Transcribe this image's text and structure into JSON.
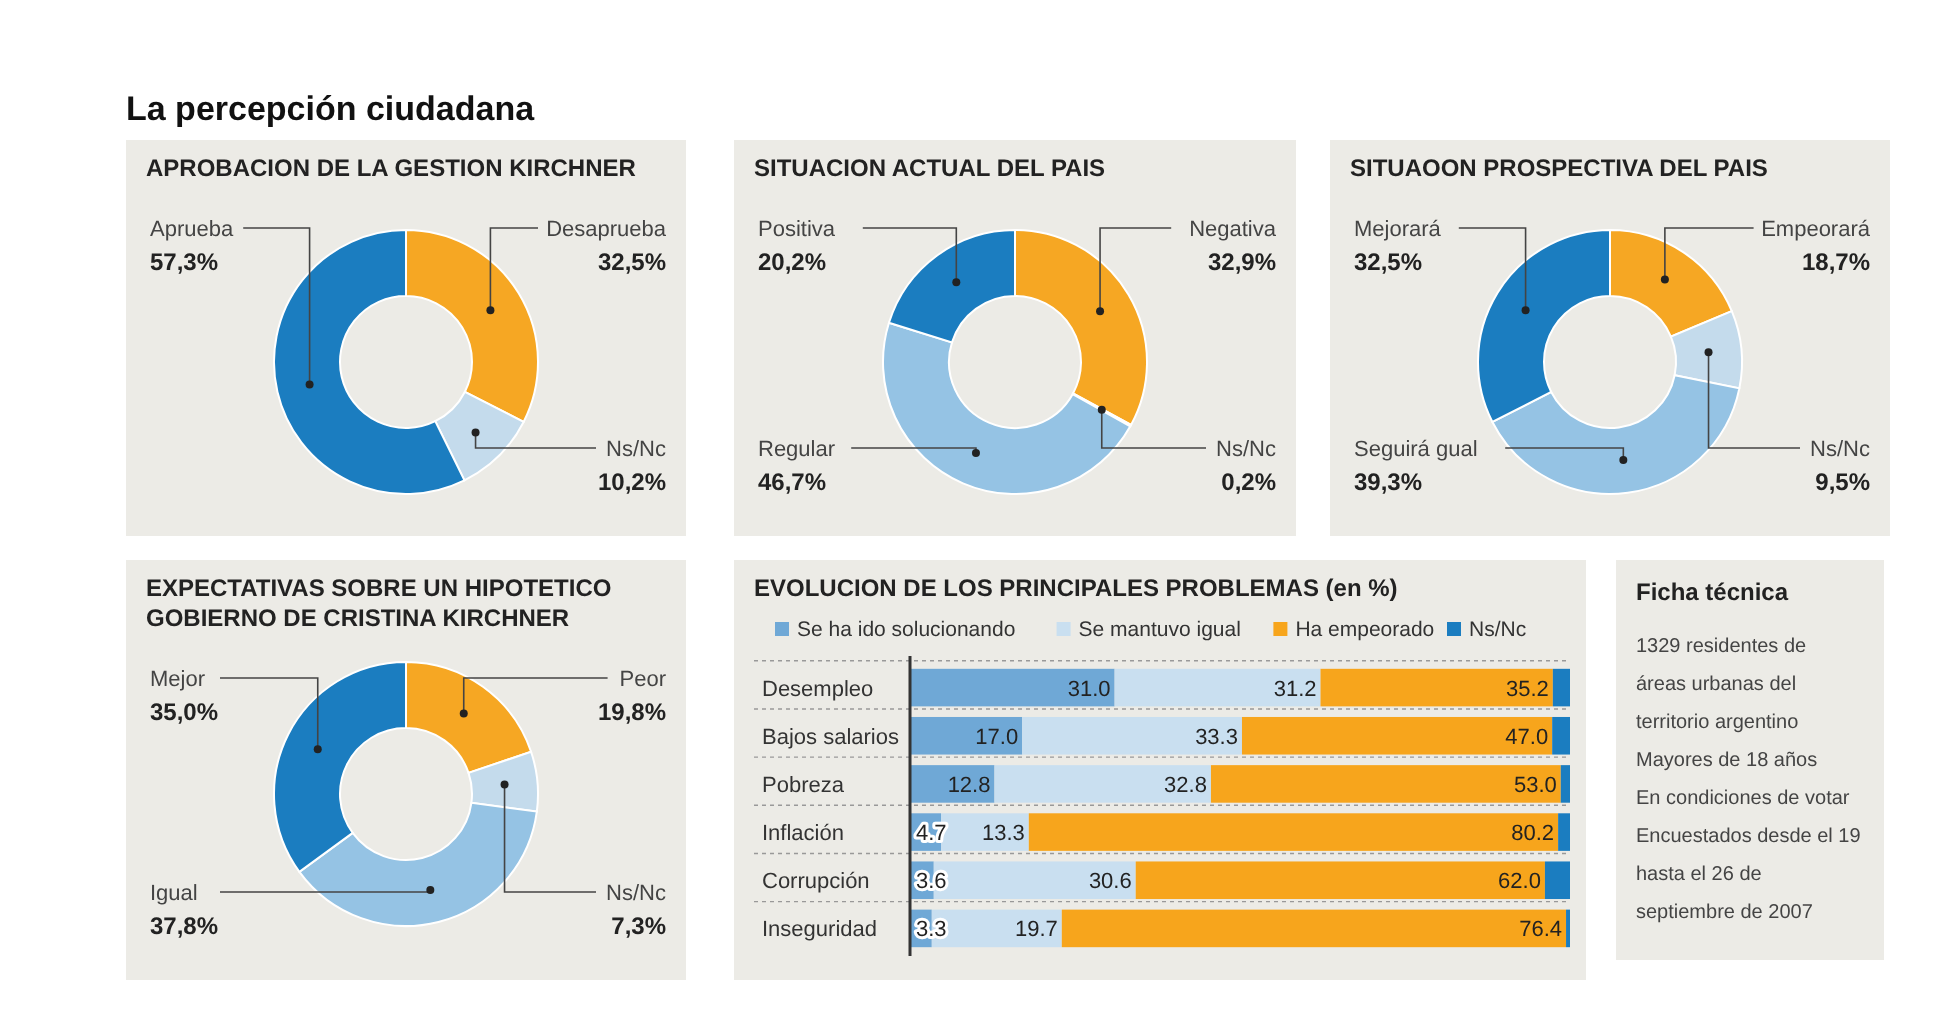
{
  "chart_data": [
    {
      "type": "other",
      "title": "La percepción ciudadana"
    },
    {
      "type": "donut",
      "title": "APROBACION DE LA GESTION KIRCHNER",
      "categories": [
        "Desaprueba",
        "Ns/Nc",
        "Aprueba"
      ],
      "values": [
        32.5,
        10.2,
        57.3
      ],
      "colors": [
        "#f6a723",
        "#c4dbec",
        "#1b7dc0"
      ],
      "value_labels": [
        "32,5%",
        "10,2%",
        "57,3%"
      ]
    },
    {
      "type": "donut",
      "title": "SITUACION ACTUAL DEL PAIS",
      "categories": [
        "Negativa",
        "Ns/Nc",
        "Regular",
        "Positiva"
      ],
      "values": [
        32.9,
        0.2,
        46.7,
        20.2
      ],
      "colors": [
        "#f6a723",
        "#c4dbec",
        "#95c3e4",
        "#1b7dc0"
      ],
      "value_labels": [
        "32,9%",
        "0,2%",
        "46,7%",
        "20,2%"
      ]
    },
    {
      "type": "donut",
      "title": "SITUAOON PROSPECTIVA DEL PAIS",
      "categories": [
        "Empeorará",
        "Ns/Nc",
        "Seguirá gual",
        "Mejorará"
      ],
      "values": [
        18.7,
        9.5,
        39.3,
        32.5
      ],
      "colors": [
        "#f6a723",
        "#c4dbec",
        "#95c3e4",
        "#1b7dc0"
      ],
      "value_labels": [
        "18,7%",
        "9,5%",
        "39,3%",
        "32,5%"
      ]
    },
    {
      "type": "donut",
      "title": "EXPECTATIVAS SOBRE UN HIPOTETICO GOBIERNO DE CRISTINA KIRCHNER",
      "categories": [
        "Peor",
        "Ns/Nc",
        "Igual",
        "Mejor"
      ],
      "values": [
        19.8,
        7.3,
        37.8,
        35.0
      ],
      "colors": [
        "#f6a723",
        "#c4dbec",
        "#95c3e4",
        "#1b7dc0"
      ],
      "value_labels": [
        "19,8%",
        "7,3%",
        "37,8%",
        "35,0%"
      ]
    },
    {
      "type": "bar",
      "title": "EVOLUCION DE LOS PRINCIPALES PROBLEMAS (en %)",
      "orientation": "horizontal",
      "stacked": true,
      "legend": "top",
      "xlim": [
        0,
        100
      ],
      "categories": [
        "Desempleo",
        "Bajos salarios",
        "Pobreza",
        "Inflación",
        "Corrupción",
        "Inseguridad"
      ],
      "series": [
        {
          "name": "Se ha ido solucionando",
          "color": "#6fa8d6",
          "values": [
            31.0,
            17.0,
            12.8,
            4.7,
            3.6,
            3.3
          ],
          "value_labels": [
            "31.0",
            "17.0",
            "12.8",
            "4.7",
            "3.6",
            "3.3"
          ]
        },
        {
          "name": "Se mantuvo igual",
          "color": "#c9dff0",
          "values": [
            31.2,
            33.3,
            32.8,
            13.3,
            30.6,
            19.7
          ],
          "value_labels": [
            "31.2",
            "33.3",
            "32.8",
            "13.3",
            "30.6",
            "19.7"
          ]
        },
        {
          "name": "Ha empeorado",
          "color": "#f7a51c",
          "values": [
            35.2,
            47.0,
            53.0,
            80.2,
            62.0,
            76.4
          ],
          "value_labels": [
            "35.2",
            "47.0",
            "53.0",
            "80.2",
            "62.0",
            "76.4"
          ]
        },
        {
          "name": "Ns/Nc",
          "color": "#1b7dc0",
          "values": [
            2.6,
            2.7,
            1.4,
            1.8,
            3.8,
            0.6
          ],
          "value_labels": [
            null,
            null,
            null,
            null,
            null,
            null
          ]
        }
      ]
    },
    {
      "type": "other",
      "title": "Ficha técnica",
      "annotations": [
        "1329 residentes de áreas urbanas del territorio argentino",
        "Mayores de 18 años",
        "En condiciones de votar",
        "Encuestados desde el 19 hasta el 26 de septiembre de 2007"
      ]
    }
  ]
}
